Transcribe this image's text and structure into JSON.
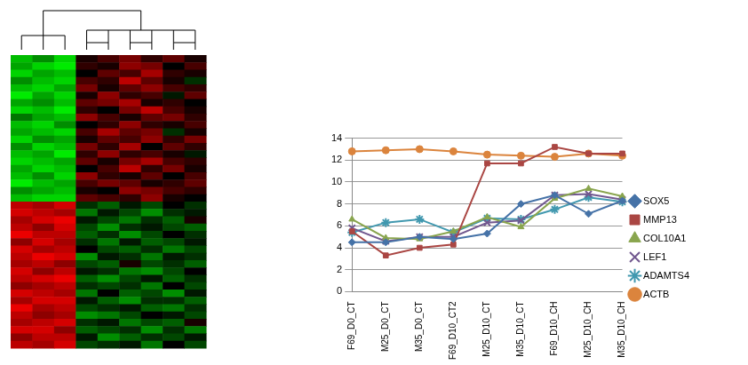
{
  "chart_data": [
    {
      "type": "heatmap",
      "tick_labels": false,
      "cells": [
        [
          -0.8,
          -0.6,
          -0.9,
          0.1,
          0.3,
          0.5,
          0.2,
          0.4,
          0.1
        ],
        [
          -0.7,
          -0.9,
          -1.0,
          0.2,
          0.1,
          0.6,
          0.5,
          0.0,
          0.3
        ],
        [
          -0.9,
          -0.7,
          -0.8,
          0.0,
          0.4,
          0.3,
          0.7,
          0.2,
          0.1
        ],
        [
          -0.6,
          -0.8,
          -0.9,
          0.3,
          0.2,
          0.8,
          0.4,
          0.1,
          -0.2
        ],
        [
          -0.8,
          -0.9,
          -0.7,
          0.5,
          0.1,
          0.4,
          0.6,
          0.3,
          0.2
        ],
        [
          -1.0,
          -0.7,
          -0.9,
          0.1,
          0.6,
          0.2,
          0.3,
          -0.1,
          0.4
        ],
        [
          -0.7,
          -0.6,
          -0.8,
          0.4,
          0.5,
          0.7,
          0.1,
          0.2,
          0.0
        ],
        [
          -0.9,
          -0.8,
          -1.0,
          0.2,
          0.0,
          0.5,
          0.8,
          0.3,
          0.1
        ],
        [
          -0.5,
          -0.7,
          -0.8,
          0.6,
          0.3,
          0.1,
          0.4,
          0.5,
          0.2
        ],
        [
          -0.8,
          -0.9,
          -0.6,
          0.0,
          0.2,
          0.6,
          0.2,
          0.1,
          0.3
        ],
        [
          -0.7,
          -0.8,
          -0.9,
          0.3,
          0.7,
          0.4,
          0.5,
          -0.2,
          0.1
        ],
        [
          -0.9,
          -0.6,
          -0.7,
          0.1,
          0.4,
          0.3,
          0.6,
          0.2,
          0.5
        ],
        [
          -0.6,
          -0.9,
          -0.8,
          0.5,
          0.2,
          0.7,
          0.0,
          0.4,
          0.2
        ],
        [
          -0.8,
          -0.7,
          -1.0,
          0.2,
          0.6,
          0.2,
          0.3,
          0.1,
          -0.1
        ],
        [
          -0.9,
          -0.8,
          -0.7,
          0.4,
          0.1,
          0.5,
          0.7,
          0.3,
          0.2
        ],
        [
          -0.7,
          -0.9,
          -0.8,
          0.0,
          0.3,
          0.8,
          0.2,
          0.5,
          0.1
        ],
        [
          -0.8,
          -0.6,
          -0.9,
          0.6,
          0.2,
          0.1,
          0.4,
          0.0,
          0.3
        ],
        [
          -1.0,
          -0.8,
          -0.7,
          0.3,
          0.5,
          0.4,
          0.1,
          0.2,
          0.4
        ],
        [
          -0.6,
          -0.7,
          -0.8,
          0.1,
          0.0,
          0.6,
          0.5,
          0.3,
          0.2
        ],
        [
          -0.8,
          -0.9,
          -0.9,
          0.4,
          0.3,
          0.2,
          0.6,
          0.1,
          0.0
        ],
        [
          0.8,
          0.7,
          0.9,
          -0.2,
          -0.4,
          -0.1,
          -0.3,
          0.0,
          -0.2
        ],
        [
          0.9,
          0.8,
          0.7,
          -0.5,
          -0.1,
          -0.3,
          -0.6,
          -0.2,
          -0.1
        ],
        [
          0.7,
          0.9,
          1.0,
          -0.1,
          -0.3,
          -0.5,
          -0.2,
          -0.4,
          0.1
        ],
        [
          0.8,
          0.6,
          0.9,
          -0.3,
          -0.6,
          -0.2,
          -0.1,
          -0.3,
          -0.4
        ],
        [
          1.0,
          0.8,
          0.8,
          -0.4,
          -0.2,
          -0.6,
          -0.3,
          0.0,
          -0.2
        ],
        [
          0.6,
          0.9,
          0.7,
          -0.2,
          -0.5,
          -0.1,
          -0.4,
          -0.3,
          -0.1
        ],
        [
          0.9,
          0.7,
          0.8,
          0.0,
          -0.3,
          -0.4,
          -0.2,
          -0.5,
          -0.3
        ],
        [
          0.8,
          1.0,
          0.9,
          -0.6,
          -0.1,
          -0.2,
          -0.5,
          -0.1,
          -0.2
        ],
        [
          0.7,
          0.8,
          0.6,
          -0.3,
          -0.4,
          0.1,
          -0.3,
          -0.2,
          -0.4
        ],
        [
          0.9,
          0.6,
          0.8,
          -0.1,
          -0.2,
          -0.5,
          -0.6,
          -0.3,
          0.0
        ],
        [
          0.8,
          0.9,
          1.0,
          -0.4,
          -0.6,
          -0.3,
          -0.1,
          -0.4,
          -0.2
        ],
        [
          0.6,
          0.7,
          0.8,
          -0.2,
          -0.3,
          -0.2,
          -0.5,
          0.0,
          -0.3
        ],
        [
          0.9,
          0.8,
          0.7,
          -0.5,
          0.0,
          -0.4,
          -0.3,
          -0.6,
          -0.1
        ],
        [
          0.7,
          0.9,
          0.9,
          -0.1,
          -0.4,
          -0.6,
          -0.2,
          -0.2,
          -0.4
        ],
        [
          1.0,
          0.7,
          0.8,
          -0.3,
          -0.2,
          -0.1,
          -0.4,
          -0.5,
          -0.2
        ],
        [
          0.8,
          0.6,
          0.7,
          -0.6,
          -0.5,
          -0.3,
          0.0,
          -0.1,
          -0.3
        ],
        [
          0.7,
          0.8,
          0.9,
          -0.2,
          -0.1,
          -0.5,
          -0.3,
          -0.4,
          0.1
        ],
        [
          0.9,
          0.9,
          0.6,
          -0.4,
          -0.3,
          -0.2,
          -0.6,
          -0.2,
          -0.5
        ],
        [
          0.6,
          0.8,
          0.8,
          -0.1,
          -0.6,
          -0.4,
          -0.2,
          -0.3,
          -0.1
        ],
        [
          0.8,
          0.7,
          0.9,
          -0.3,
          -0.2,
          -0.1,
          -0.5,
          0.0,
          -0.3
        ]
      ]
    },
    {
      "type": "line",
      "categories": [
        "F69_D0_CT",
        "M25_D0_CT",
        "M35_D0_CT",
        "F69_D10_CT2",
        "M25_D10_CT",
        "M35_D10_CT",
        "F69_D10_CH",
        "M25_D10_CH",
        "M35_D10_CH"
      ],
      "series": [
        {
          "name": "SOX5",
          "color": "#4572a7",
          "marker": "diamond",
          "values": [
            4.5,
            4.5,
            5.0,
            4.8,
            5.3,
            8.0,
            8.8,
            7.1,
            8.3
          ]
        },
        {
          "name": "MMP13",
          "color": "#aa4643",
          "marker": "square",
          "values": [
            5.5,
            3.3,
            4.0,
            4.3,
            11.7,
            11.7,
            13.2,
            12.6,
            12.6
          ]
        },
        {
          "name": "COL10A1",
          "color": "#89a54e",
          "marker": "triangle",
          "values": [
            6.6,
            4.9,
            4.8,
            5.5,
            6.8,
            5.9,
            8.5,
            9.4,
            8.7
          ]
        },
        {
          "name": "LEF1",
          "color": "#71588f",
          "marker": "x",
          "values": [
            5.8,
            4.6,
            5.0,
            5.0,
            6.3,
            6.5,
            8.8,
            8.9,
            8.4
          ]
        },
        {
          "name": "ADAMTS4",
          "color": "#4198af",
          "marker": "star",
          "values": [
            5.4,
            6.3,
            6.6,
            5.4,
            6.7,
            6.6,
            7.5,
            8.6,
            8.2
          ]
        },
        {
          "name": "ACTB",
          "color": "#db843d",
          "marker": "circle",
          "values": [
            12.8,
            12.9,
            13.0,
            12.8,
            12.5,
            12.4,
            12.3,
            12.6,
            12.4
          ]
        }
      ],
      "ylim": [
        0,
        14
      ],
      "yticks": [
        0,
        2,
        4,
        6,
        8,
        10,
        12,
        14
      ],
      "grid": true,
      "legend": "right"
    }
  ]
}
